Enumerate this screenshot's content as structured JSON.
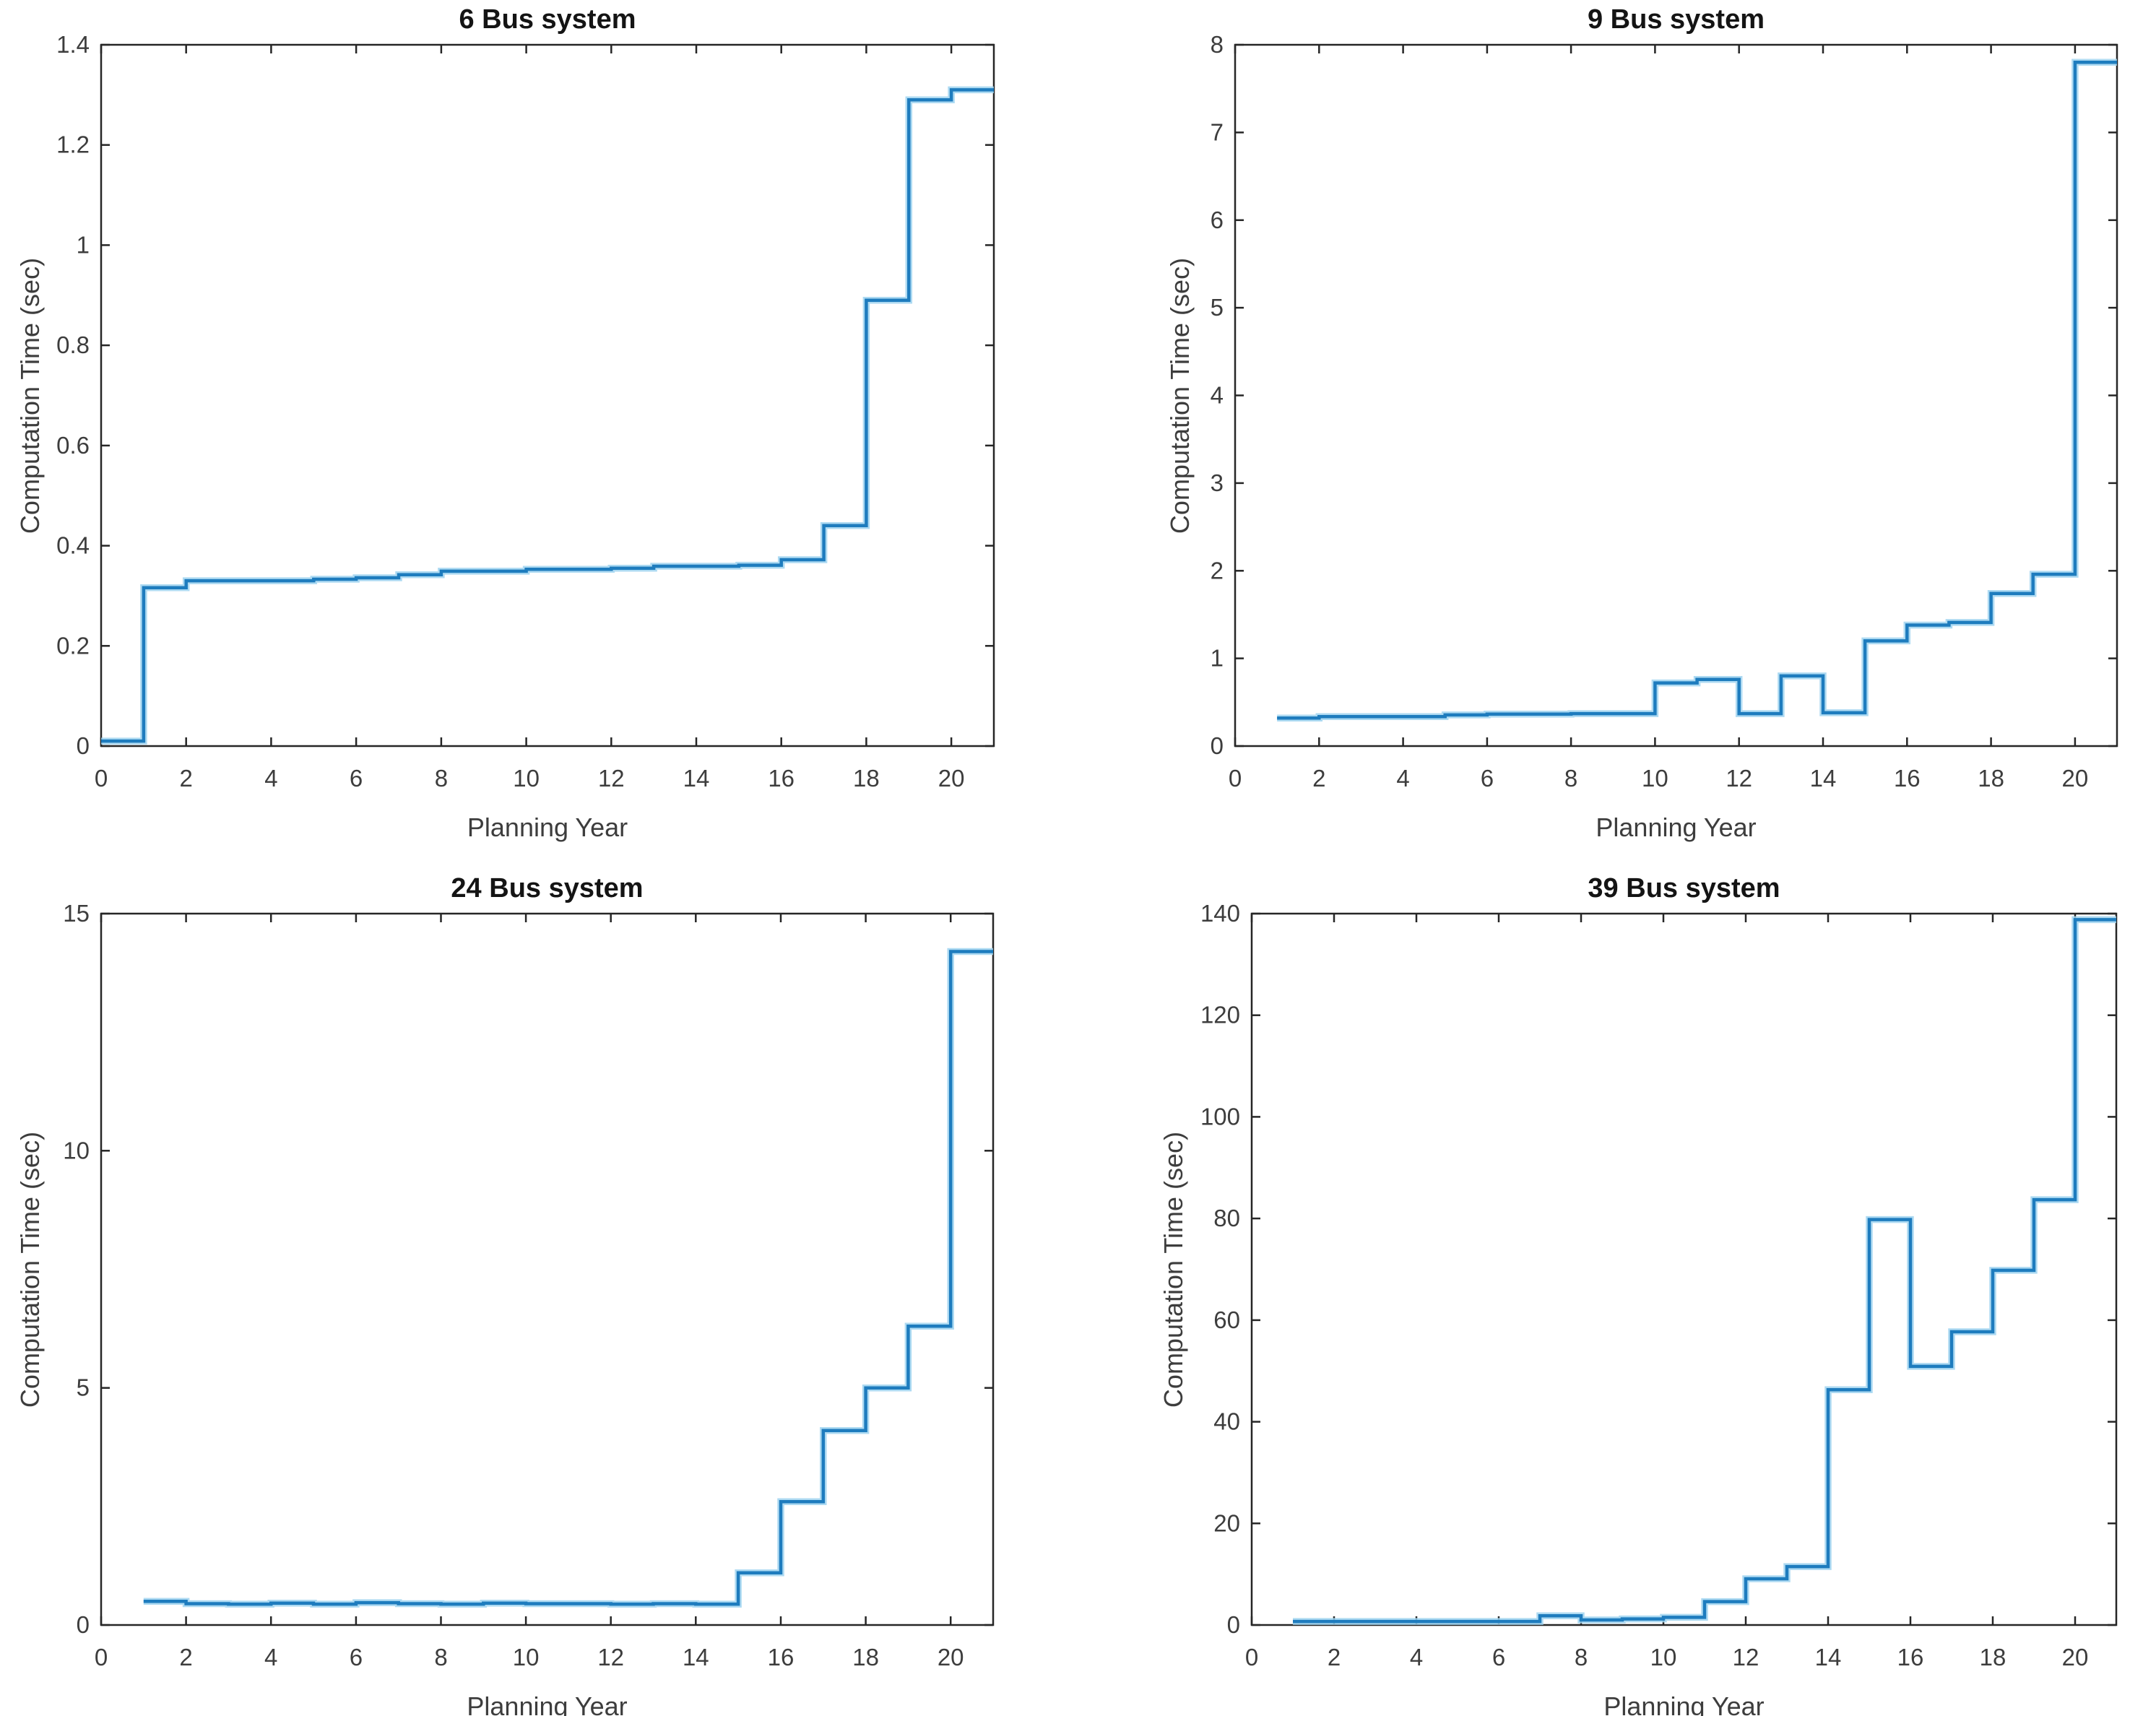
{
  "figure": {
    "background": "#ffffff",
    "rows": 2,
    "cols": 2
  },
  "style": {
    "line_color": "#1e7cbe",
    "line_halo_color": "#9fd3f0",
    "axis_color": "#262626",
    "tick_label_color": "#3d3d3d",
    "title_color": "#141414"
  },
  "chart_data": [
    {
      "type": "stairs",
      "title": "6 Bus system",
      "xlabel": "Planning Year",
      "ylabel": "Computation Time (sec)",
      "xlim": [
        0,
        21
      ],
      "ylim": [
        0,
        1.4
      ],
      "xticks": [
        0,
        2,
        4,
        6,
        8,
        10,
        12,
        14,
        16,
        18,
        20
      ],
      "xtick_labels": [
        "0",
        "2",
        "4",
        "6",
        "8",
        "10",
        "12",
        "14",
        "16",
        "18",
        "20"
      ],
      "yticks": [
        0,
        0.2,
        0.4,
        0.6,
        0.8,
        1,
        1.2,
        1.4
      ],
      "ytick_labels": [
        "0",
        "0.2",
        "0.4",
        "0.6",
        "0.8",
        "1",
        "1.2",
        "1.4"
      ],
      "years": [
        0,
        1,
        2,
        3,
        4,
        5,
        6,
        7,
        8,
        9,
        10,
        11,
        12,
        13,
        14,
        15,
        16,
        17,
        18,
        19,
        20
      ],
      "values": [
        0.01,
        0.316,
        0.33,
        0.33,
        0.33,
        0.333,
        0.336,
        0.342,
        0.349,
        0.349,
        0.353,
        0.353,
        0.355,
        0.359,
        0.359,
        0.361,
        0.372,
        0.44,
        0.89,
        1.29,
        1.31
      ],
      "grid": false,
      "legend": null
    },
    {
      "type": "stairs",
      "title": "9 Bus system",
      "xlabel": "Planning Year",
      "ylabel": "Computation Time (sec)",
      "xlim": [
        0,
        21
      ],
      "ylim": [
        0,
        8
      ],
      "xticks": [
        0,
        2,
        4,
        6,
        8,
        10,
        12,
        14,
        16,
        18,
        20
      ],
      "xtick_labels": [
        "0",
        "2",
        "4",
        "6",
        "8",
        "10",
        "12",
        "14",
        "16",
        "18",
        "20"
      ],
      "yticks": [
        0,
        1,
        2,
        3,
        4,
        5,
        6,
        7,
        8
      ],
      "ytick_labels": [
        "0",
        "1",
        "2",
        "3",
        "4",
        "5",
        "6",
        "7",
        "8"
      ],
      "years": [
        1,
        2,
        3,
        4,
        5,
        6,
        7,
        8,
        9,
        10,
        11,
        12,
        13,
        14,
        15,
        16,
        17,
        18,
        19,
        20
      ],
      "values": [
        0.32,
        0.335,
        0.335,
        0.335,
        0.355,
        0.365,
        0.365,
        0.37,
        0.37,
        0.72,
        0.76,
        0.37,
        0.8,
        0.38,
        1.2,
        1.38,
        1.41,
        1.74,
        1.96,
        7.8
      ],
      "grid": false,
      "legend": null
    },
    {
      "type": "stairs",
      "title": "24 Bus system",
      "xlabel": "Planning Year",
      "ylabel": "Computation Time (sec)",
      "xlim": [
        0,
        21
      ],
      "ylim": [
        0,
        15
      ],
      "xticks": [
        0,
        2,
        4,
        6,
        8,
        10,
        12,
        14,
        16,
        18,
        20
      ],
      "xtick_labels": [
        "0",
        "2",
        "4",
        "6",
        "8",
        "10",
        "12",
        "14",
        "16",
        "18",
        "20"
      ],
      "yticks": [
        0,
        5,
        10,
        15
      ],
      "ytick_labels": [
        "0",
        "5",
        "10",
        "15"
      ],
      "years": [
        1,
        2,
        3,
        4,
        5,
        6,
        7,
        8,
        9,
        10,
        11,
        12,
        13,
        14,
        15,
        16,
        17,
        18,
        19,
        20
      ],
      "values": [
        0.5,
        0.45,
        0.44,
        0.46,
        0.44,
        0.47,
        0.45,
        0.44,
        0.46,
        0.45,
        0.45,
        0.44,
        0.45,
        0.44,
        1.1,
        2.6,
        4.1,
        5.0,
        6.3,
        14.2
      ],
      "grid": false,
      "legend": null
    },
    {
      "type": "stairs",
      "title": "39 Bus system",
      "xlabel": "Planning Year",
      "ylabel": "Computation Time (sec)",
      "xlim": [
        0,
        21
      ],
      "ylim": [
        0,
        140
      ],
      "xticks": [
        0,
        2,
        4,
        6,
        8,
        10,
        12,
        14,
        16,
        18,
        20
      ],
      "xtick_labels": [
        "0",
        "2",
        "4",
        "6",
        "8",
        "10",
        "12",
        "14",
        "16",
        "18",
        "20"
      ],
      "yticks": [
        0,
        20,
        40,
        60,
        80,
        100,
        120,
        140
      ],
      "ytick_labels": [
        "0",
        "20",
        "40",
        "60",
        "80",
        "100",
        "120",
        "140"
      ],
      "years": [
        1,
        2,
        3,
        4,
        5,
        6,
        7,
        8,
        9,
        10,
        11,
        12,
        13,
        14,
        15,
        16,
        17,
        18,
        19,
        20
      ],
      "values": [
        0.7,
        0.7,
        0.7,
        0.7,
        0.7,
        0.7,
        1.8,
        1.0,
        1.2,
        1.5,
        4.6,
        9.1,
        11.5,
        46.3,
        79.8,
        50.9,
        57.7,
        69.8,
        83.7,
        138.8
      ],
      "grid": false,
      "legend": null
    }
  ]
}
